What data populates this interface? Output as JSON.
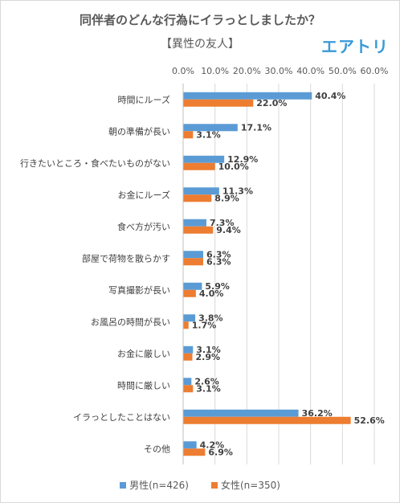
{
  "chart_data": {
    "type": "bar",
    "orientation": "horizontal",
    "title": "同伴者のどんな行為にイラっとしましたか？",
    "subtitle": "【異性の友人】",
    "brand": "エアトリ",
    "categories": [
      "時間にルーズ",
      "朝の準備が長い",
      "行きたいところ・食べたいものがない",
      "お金にルーズ",
      "食べ方が汚い",
      "部屋で荷物を散らかす",
      "写真撮影が長い",
      "お風呂の時間が長い",
      "お金に厳しい",
      "時間に厳しい",
      "イラっとしたことはない",
      "その他"
    ],
    "series": [
      {
        "name": "男性(n=426)",
        "color": "#5b9bd5",
        "values": [
          40.4,
          17.1,
          12.9,
          11.3,
          7.3,
          6.3,
          5.9,
          3.8,
          3.1,
          2.6,
          36.2,
          4.2
        ],
        "labels": [
          "40.4%",
          "17.1%",
          "12.9%",
          "11.3%",
          "7.3%",
          "6.3%",
          "5.9%",
          "3.8%",
          "3.1%",
          "2.6%",
          "36.2%",
          "4.2%"
        ]
      },
      {
        "name": "女性(n=350)",
        "color": "#ed7d31",
        "values": [
          22.0,
          3.1,
          10.0,
          8.9,
          9.4,
          6.3,
          4.0,
          1.7,
          2.9,
          3.1,
          52.6,
          6.9
        ],
        "labels": [
          "22.0%",
          "3.1%",
          "10.0%",
          "8.9%",
          "9.4%",
          "6.3%",
          "4.0%",
          "1.7%",
          "2.9%",
          "3.1%",
          "52.6%",
          "6.9%"
        ]
      }
    ],
    "x_ticks": [
      0,
      10,
      20,
      30,
      40,
      50,
      60
    ],
    "x_tick_labels": [
      "0.0%",
      "10.0%",
      "20.0%",
      "30.0%",
      "40.0%",
      "50.0%",
      "60.0%"
    ],
    "xlim": [
      0,
      60
    ],
    "x_axis_position": "top",
    "grid": true,
    "legend_position": "bottom"
  }
}
